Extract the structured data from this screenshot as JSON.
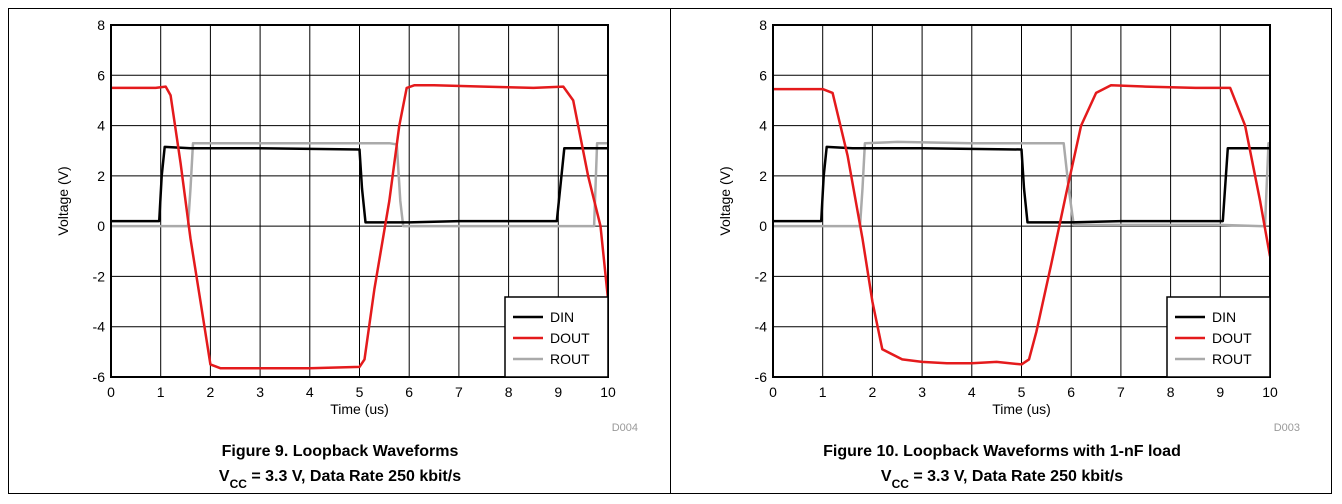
{
  "chart_data": [
    {
      "type": "line",
      "figure_label": "Figure 9. Loopback Waveforms",
      "caption_line2": {
        "prefix": "V",
        "sub": "CC",
        "rest": " = 3.3 V, Data Rate 250 kbit/s"
      },
      "xlabel": "Time (us)",
      "ylabel": "Voltage (V)",
      "xlim": [
        0,
        10
      ],
      "ylim": [
        -6,
        8
      ],
      "xticks": [
        "0",
        "1",
        "2",
        "3",
        "4",
        "5",
        "6",
        "7",
        "8",
        "9",
        "10"
      ],
      "yticks": [
        "-6",
        "-4",
        "-2",
        "0",
        "2",
        "4",
        "6",
        "8"
      ],
      "grid": true,
      "legend_position": "bottom-right",
      "code": "D004",
      "series": [
        {
          "name": "DIN",
          "color": "#000000",
          "x": [
            0,
            0.97,
            1.02,
            1.08,
            1.6,
            3.0,
            5.0,
            5.05,
            5.12,
            6.0,
            7.0,
            8.0,
            8.97,
            9.12,
            9.2,
            10
          ],
          "y": [
            0.2,
            0.2,
            2.0,
            3.15,
            3.1,
            3.1,
            3.05,
            1.5,
            0.15,
            0.15,
            0.2,
            0.2,
            0.2,
            3.1,
            3.1,
            3.1
          ]
        },
        {
          "name": "DOUT",
          "color": "#e41a1c",
          "x": [
            0,
            0.9,
            1.1,
            1.2,
            1.4,
            1.6,
            1.8,
            2.0,
            2.2,
            3.0,
            4.0,
            5.0,
            5.1,
            5.3,
            5.6,
            5.8,
            5.95,
            6.1,
            6.5,
            7.5,
            8.5,
            9.1,
            9.3,
            9.6,
            9.85,
            10
          ],
          "y": [
            5.5,
            5.5,
            5.55,
            5.2,
            2.5,
            -0.5,
            -3.0,
            -5.5,
            -5.65,
            -5.65,
            -5.65,
            -5.6,
            -5.3,
            -2.5,
            1.0,
            4.0,
            5.5,
            5.6,
            5.6,
            5.55,
            5.5,
            5.55,
            5.0,
            2.0,
            0.0,
            -2.9
          ]
        },
        {
          "name": "ROUT",
          "color": "#aaaaaa",
          "x": [
            0,
            1.55,
            1.6,
            1.65,
            2.5,
            4.0,
            5.0,
            5.6,
            5.75,
            5.82,
            5.88,
            7.0,
            8.0,
            9.0,
            9.6,
            9.72,
            9.78,
            10
          ],
          "y": [
            0.0,
            0.0,
            1.5,
            3.3,
            3.3,
            3.3,
            3.3,
            3.3,
            3.25,
            1.0,
            0.0,
            0.0,
            0.0,
            0.0,
            0.0,
            0.0,
            3.3,
            3.3
          ]
        }
      ]
    },
    {
      "type": "line",
      "figure_label": "Figure 10. Loopback Waveforms with 1-nF load",
      "caption_line2": {
        "prefix": "V",
        "sub": "CC",
        "rest": " = 3.3 V, Data Rate 250 kbit/s"
      },
      "xlabel": "Time (us)",
      "ylabel": "Voltage (V)",
      "xlim": [
        0,
        10
      ],
      "ylim": [
        -6,
        8
      ],
      "xticks": [
        "0",
        "1",
        "2",
        "3",
        "4",
        "5",
        "6",
        "7",
        "8",
        "9",
        "10"
      ],
      "yticks": [
        "-6",
        "-4",
        "-2",
        "0",
        "2",
        "4",
        "6",
        "8"
      ],
      "grid": true,
      "legend_position": "bottom-right",
      "code": "D003",
      "series": [
        {
          "name": "DIN",
          "color": "#000000",
          "x": [
            0,
            0.97,
            1.02,
            1.08,
            1.6,
            3.0,
            5.0,
            5.05,
            5.12,
            6.0,
            7.0,
            8.0,
            9.05,
            9.15,
            9.22,
            10
          ],
          "y": [
            0.2,
            0.2,
            2.0,
            3.15,
            3.1,
            3.1,
            3.05,
            1.5,
            0.15,
            0.15,
            0.2,
            0.2,
            0.2,
            3.1,
            3.1,
            3.1
          ]
        },
        {
          "name": "DOUT",
          "color": "#e41a1c",
          "x": [
            0,
            1.0,
            1.2,
            1.5,
            1.8,
            2.0,
            2.2,
            2.6,
            3.0,
            3.5,
            4.0,
            4.5,
            5.0,
            5.15,
            5.3,
            5.6,
            5.9,
            6.2,
            6.5,
            6.8,
            7.5,
            8.5,
            9.2,
            9.5,
            9.8,
            10
          ],
          "y": [
            5.45,
            5.45,
            5.3,
            2.8,
            -0.5,
            -3.0,
            -4.9,
            -5.3,
            -5.4,
            -5.45,
            -5.45,
            -5.4,
            -5.5,
            -5.3,
            -4.2,
            -1.5,
            1.3,
            4.0,
            5.3,
            5.6,
            5.55,
            5.5,
            5.5,
            4.0,
            1.0,
            -1.2
          ]
        },
        {
          "name": "ROUT",
          "color": "#aaaaaa",
          "x": [
            0,
            1.75,
            1.8,
            1.85,
            2.5,
            4.0,
            5.0,
            5.7,
            5.85,
            5.95,
            6.05,
            7.0,
            8.0,
            9.0,
            9.8,
            9.9,
            9.97,
            10
          ],
          "y": [
            0.0,
            0.0,
            1.5,
            3.3,
            3.35,
            3.3,
            3.3,
            3.3,
            3.3,
            1.5,
            0.05,
            0.05,
            0.05,
            0.05,
            0.0,
            0.0,
            3.3,
            3.3
          ]
        }
      ]
    }
  ]
}
